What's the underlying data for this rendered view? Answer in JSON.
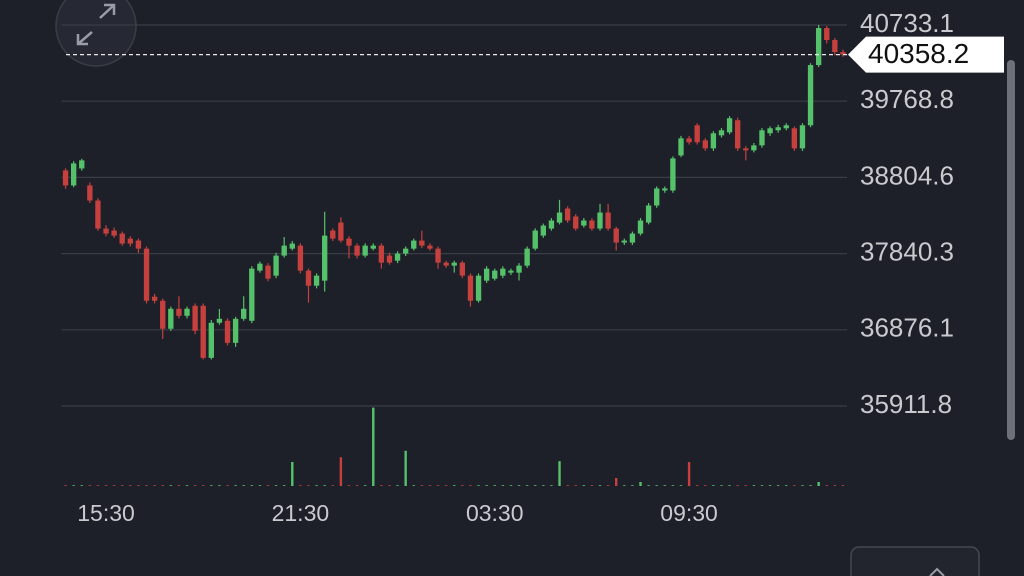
{
  "chart_data": {
    "type": "candlestick",
    "up_color": "#55c16a",
    "down_color": "#c6403e",
    "grid": true,
    "ylim": [
      35911.8,
      40733.1
    ],
    "yticks": [
      40733.1,
      39768.8,
      38804.6,
      37840.3,
      36876.1,
      35911.8
    ],
    "xlim": [
      -0.5,
      96.5
    ],
    "xticks": [
      {
        "value": 5,
        "label": "15:30"
      },
      {
        "value": 29,
        "label": "21:30"
      },
      {
        "value": 53,
        "label": "03:30"
      },
      {
        "value": 77,
        "label": "09:30"
      }
    ],
    "last_price": 40358.2,
    "volume_lim": [
      0,
      100
    ],
    "open": [
      38893,
      38703,
      38918,
      38703,
      38512,
      38157,
      38132,
      38094,
      38030,
      38005,
      37903,
      37295,
      37244,
      36889,
      37142,
      37053,
      37180,
      37180,
      36521,
      36965,
      36990,
      36711,
      37015,
      36990,
      37625,
      37688,
      37561,
      37815,
      37903,
      37941,
      37625,
      37434,
      37498,
      38132,
      38233,
      38030,
      37941,
      37815,
      37903,
      37941,
      37815,
      37751,
      37840,
      37903,
      38005,
      37941,
      37903,
      37726,
      37688,
      37726,
      37561,
      37244,
      37498,
      37523,
      37561,
      37599,
      37599,
      37688,
      37903,
      38068,
      38157,
      38233,
      38411,
      38310,
      38195,
      38259,
      38157,
      38360,
      38157,
      37980,
      37980,
      38094,
      38233,
      38449,
      38639,
      38639,
      39083,
      39299,
      39464,
      39274,
      39172,
      39337,
      39375,
      39528,
      39172,
      39147,
      39210,
      39363,
      39401,
      39426,
      39426,
      39172,
      39464,
      40226,
      40695,
      40543,
      40391
    ],
    "high": [
      38920,
      39010,
      39040,
      38740,
      38540,
      38200,
      38170,
      38120,
      38060,
      38030,
      37930,
      37330,
      37270,
      37170,
      37300,
      37170,
      37210,
      37210,
      37000,
      37140,
      37020,
      37040,
      37300,
      37680,
      37740,
      37720,
      37850,
      38050,
      38000,
      37970,
      37650,
      37590,
      38370,
      38160,
      38300,
      38060,
      37970,
      37970,
      37970,
      37970,
      37850,
      37870,
      37930,
      38030,
      38130,
      37970,
      37930,
      37750,
      37750,
      37750,
      37590,
      37590,
      37680,
      37650,
      37680,
      37650,
      37720,
      37930,
      38160,
      38220,
      38290,
      38520,
      38440,
      38340,
      38290,
      38290,
      38470,
      38470,
      38180,
      38030,
      38120,
      38290,
      38480,
      38690,
      38690,
      39070,
      39330,
      39330,
      39490,
      39300,
      39390,
      39430,
      39580,
      39560,
      39200,
      39240,
      39430,
      39450,
      39470,
      39490,
      39450,
      39490,
      40250,
      40733,
      40720,
      40570,
      40420
    ],
    "low": [
      38660,
      38680,
      38890,
      38480,
      38130,
      38060,
      38040,
      37940,
      37930,
      37850,
      37210,
      37210,
      36760,
      36860,
      37020,
      37020,
      36820,
      36500,
      36500,
      36940,
      36680,
      36660,
      36990,
      36960,
      37600,
      37490,
      37530,
      37790,
      37880,
      37590,
      37220,
      37400,
      37360,
      38000,
      37980,
      37780,
      37780,
      37790,
      37880,
      37650,
      37700,
      37720,
      37810,
      37880,
      37910,
      37880,
      37650,
      37660,
      37600,
      37530,
      37170,
      37220,
      37470,
      37500,
      37530,
      37570,
      37500,
      37660,
      37880,
      38040,
      38130,
      38210,
      38230,
      38130,
      38170,
      38130,
      38130,
      38130,
      37880,
      37950,
      37950,
      38070,
      38210,
      38420,
      38610,
      38610,
      39060,
      39220,
      39220,
      39140,
      39140,
      39310,
      39350,
      39140,
      39020,
      39120,
      39180,
      39330,
      39370,
      39400,
      39140,
      39140,
      39440,
      40200,
      40500,
      40350,
      40330
    ],
    "close": [
      38703,
      38982,
      39020,
      38512,
      38157,
      38094,
      38068,
      37967,
      37967,
      37903,
      37244,
      37244,
      36889,
      37142,
      37053,
      37142,
      36863,
      36521,
      36965,
      37015,
      36711,
      37015,
      37142,
      37650,
      37713,
      37523,
      37815,
      37941,
      37967,
      37625,
      37434,
      37561,
      38068,
      38030,
      38005,
      37941,
      37815,
      37941,
      37941,
      37726,
      37726,
      37840,
      37903,
      38005,
      37941,
      37903,
      37726,
      37688,
      37726,
      37561,
      37244,
      37561,
      37650,
      37625,
      37650,
      37625,
      37688,
      37903,
      38132,
      38195,
      38259,
      38360,
      38259,
      38157,
      38259,
      38157,
      38360,
      38157,
      37980,
      38005,
      38094,
      38259,
      38449,
      38665,
      38665,
      39045,
      39299,
      39249,
      39249,
      39172,
      39363,
      39401,
      39553,
      39172,
      39147,
      39210,
      39401,
      39426,
      39439,
      39464,
      39172,
      39464,
      40226,
      40695,
      40543,
      40391,
      40358.2
    ],
    "volume": [
      1,
      1,
      1,
      1,
      1,
      1,
      1,
      1,
      1,
      1,
      1,
      1,
      1,
      1,
      1,
      1,
      1,
      1,
      1,
      1,
      1,
      1,
      1,
      1,
      1,
      1,
      1,
      1,
      30,
      1,
      1,
      1,
      1,
      1,
      36,
      1,
      1,
      1,
      98,
      1,
      1,
      1,
      44,
      1,
      1,
      1,
      1,
      1,
      1,
      1,
      1,
      1,
      1,
      1,
      1,
      1,
      1,
      1,
      1,
      1,
      1,
      31,
      1,
      1,
      1,
      1,
      1,
      1,
      10,
      1,
      1,
      5,
      1,
      1,
      1,
      1,
      1,
      30,
      1,
      1,
      1,
      1,
      1,
      1,
      1,
      1,
      1,
      1,
      1,
      1,
      1,
      1,
      1,
      5,
      1,
      1,
      1
    ]
  }
}
